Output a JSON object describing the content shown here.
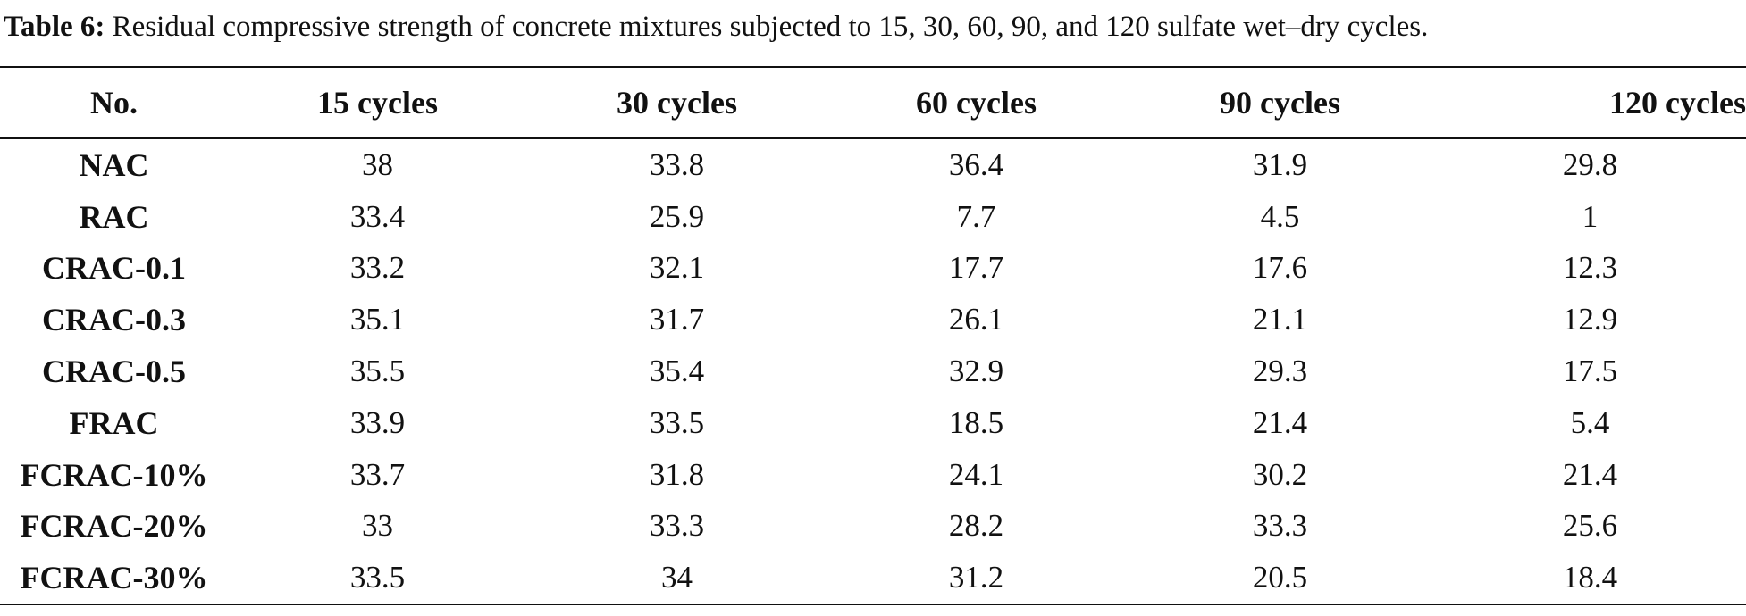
{
  "caption": {
    "label": "Table 6:",
    "text": " Residual compressive strength of concrete mixtures subjected to 15, 30, 60, 90, and 120 sulfate wet–dry cycles."
  },
  "table": {
    "headers": [
      "No.",
      "15 cycles",
      "30 cycles",
      "60 cycles",
      "90 cycles",
      "120 cycles"
    ],
    "rows": [
      [
        "NAC",
        "38",
        "33.8",
        "36.4",
        "31.9",
        "29.8"
      ],
      [
        "RAC",
        "33.4",
        "25.9",
        "7.7",
        "4.5",
        "1"
      ],
      [
        "CRAC-0.1",
        "33.2",
        "32.1",
        "17.7",
        "17.6",
        "12.3"
      ],
      [
        "CRAC-0.3",
        "35.1",
        "31.7",
        "26.1",
        "21.1",
        "12.9"
      ],
      [
        "CRAC-0.5",
        "35.5",
        "35.4",
        "32.9",
        "29.3",
        "17.5"
      ],
      [
        "FRAC",
        "33.9",
        "33.5",
        "18.5",
        "21.4",
        "5.4"
      ],
      [
        "FCRAC-10%",
        "33.7",
        "31.8",
        "24.1",
        "30.2",
        "21.4"
      ],
      [
        "FCRAC-20%",
        "33",
        "33.3",
        "28.2",
        "33.3",
        "25.6"
      ],
      [
        "FCRAC-30%",
        "33.5",
        "34",
        "31.2",
        "20.5",
        "18.4"
      ]
    ]
  }
}
